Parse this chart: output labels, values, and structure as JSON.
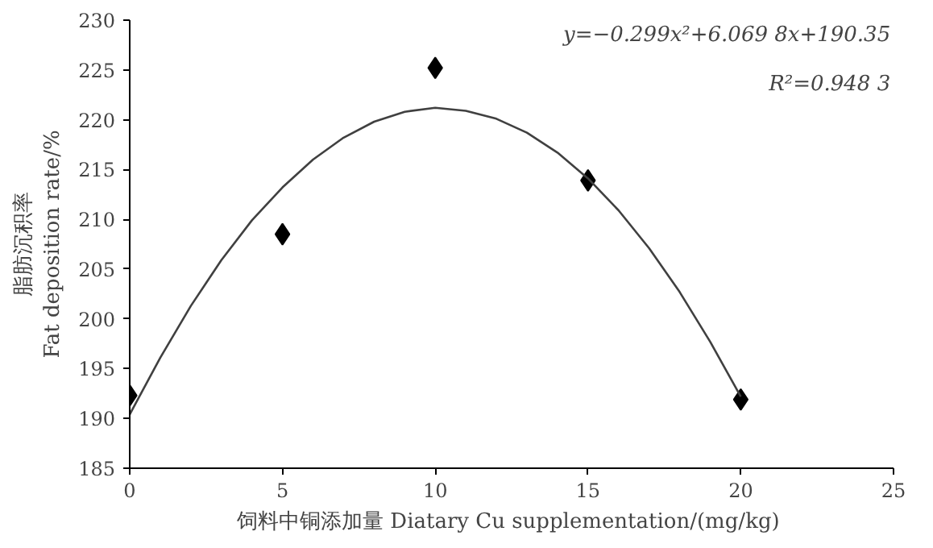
{
  "chart_data": {
    "type": "scatter",
    "xlabel": "饲料中铜添加量  Diatary Cu supplementation/(mg/kg)",
    "ylabel": "脂肪沉积率\nFat deposition rate/%",
    "xlim": [
      0,
      25
    ],
    "xticks": [
      0,
      5,
      10,
      15,
      20,
      25
    ],
    "ylim": [
      185,
      230
    ],
    "yticks": [
      185,
      190,
      195,
      200,
      205,
      210,
      215,
      220,
      225,
      230
    ],
    "grid": false,
    "marker": "diamond",
    "series": [
      {
        "color": "#000000",
        "x": [
          0,
          5,
          10,
          15,
          20
        ],
        "values": [
          192.3,
          208.5,
          225.2,
          213.9,
          191.9
        ]
      },
      {
        "type": "line",
        "color": "#404040",
        "line_style": "solid",
        "marker": "none",
        "x": [
          0,
          1,
          2,
          3,
          4,
          5,
          6,
          7,
          8,
          9,
          10,
          11,
          12,
          13,
          14,
          15,
          16,
          17,
          18,
          19,
          20
        ],
        "values": [
          190.4,
          196.1,
          201.3,
          205.9,
          209.9,
          213.2,
          216.0,
          218.2,
          219.8,
          220.8,
          221.2,
          220.9,
          220.1,
          218.7,
          216.7,
          214.1,
          210.9,
          207.1,
          202.7,
          197.7,
          192.2
        ]
      }
    ],
    "annotations": [
      {
        "text": "y=−0.299x²+6.069 8x+190.35"
      },
      {
        "text": "R²=0.948 3"
      }
    ]
  }
}
